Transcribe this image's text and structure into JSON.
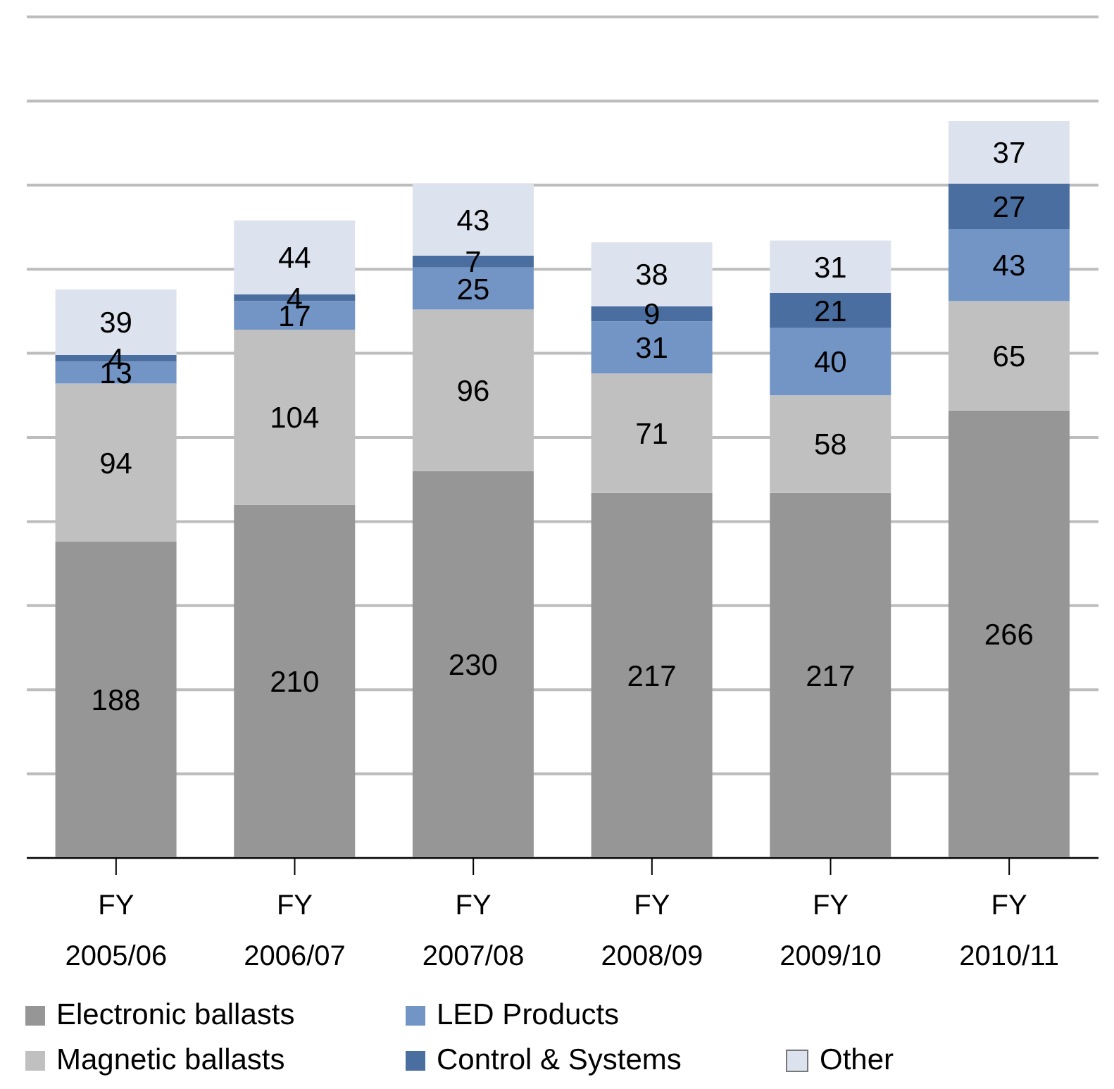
{
  "chart_data": {
    "type": "bar",
    "stacked": true,
    "categories": [
      "FY\n2005/06",
      "FY\n2006/07",
      "FY\n2007/08",
      "FY\n2008/09",
      "FY\n2009/10",
      "FY\n2010/11"
    ],
    "series": [
      {
        "name": "Electronic ballasts",
        "color": "#969696",
        "values": [
          188,
          210,
          230,
          217,
          217,
          266
        ]
      },
      {
        "name": "Magnetic ballasts",
        "color": "#c0c0c0",
        "values": [
          94,
          104,
          96,
          71,
          58,
          65
        ]
      },
      {
        "name": "LED Products",
        "color": "#7295c6",
        "values": [
          13,
          17,
          25,
          31,
          40,
          43
        ]
      },
      {
        "name": "Control & Systems",
        "color": "#4a6ea0",
        "values": [
          4,
          4,
          7,
          9,
          21,
          27
        ]
      },
      {
        "name": "Other",
        "color": "#dde3ee",
        "values": [
          39,
          44,
          43,
          38,
          31,
          37
        ]
      }
    ],
    "ylim": [
      0,
      500
    ],
    "tick_labels": "x",
    "grid": "y",
    "legend": "bottom",
    "data_labels": true
  }
}
